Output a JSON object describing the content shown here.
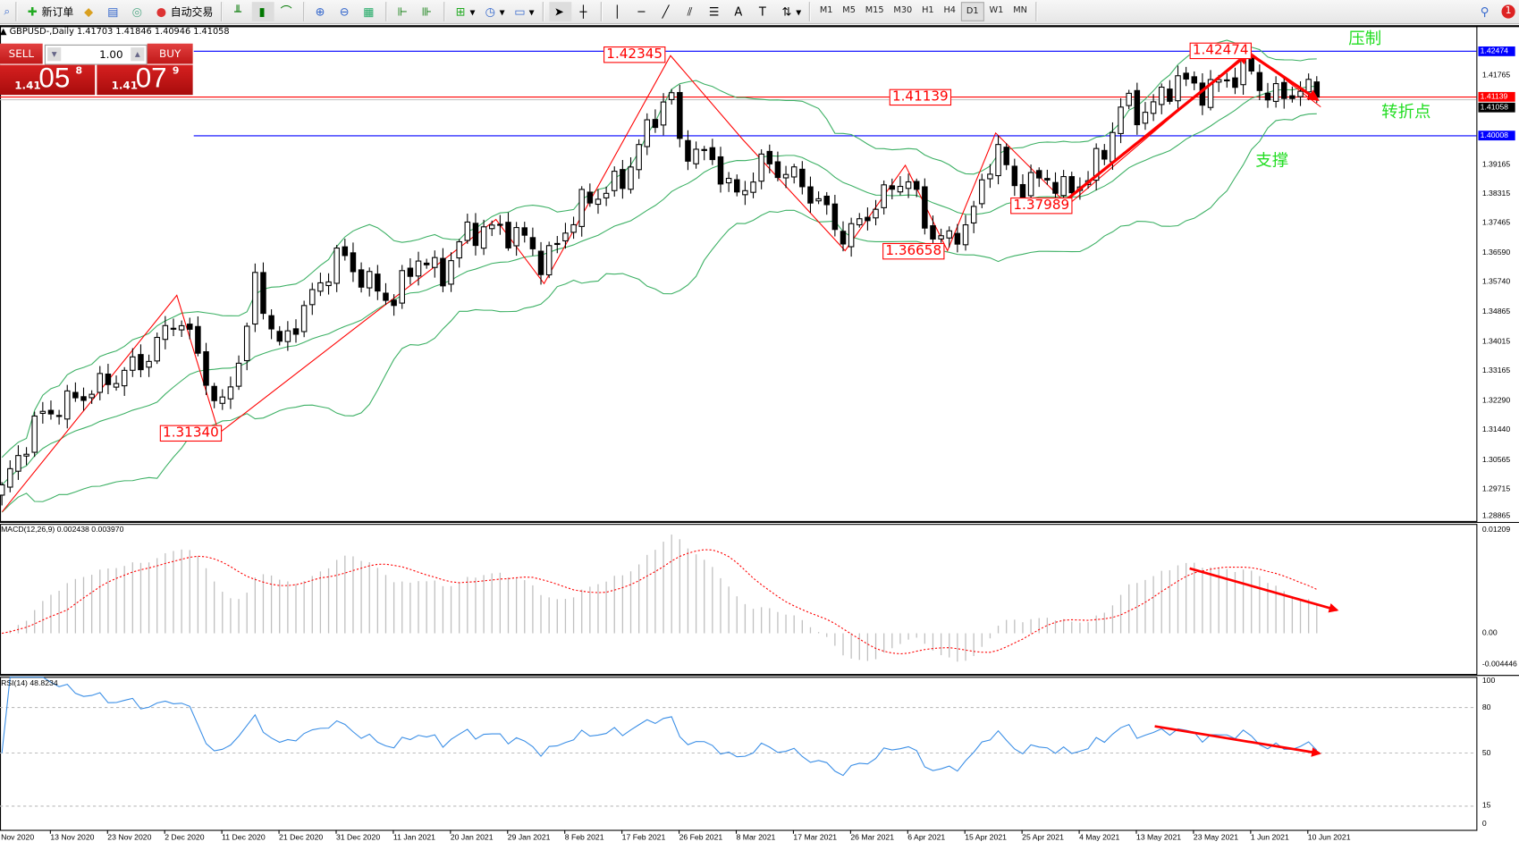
{
  "toolbar": {
    "items": [
      {
        "icon": "new-order-icon",
        "label": "新订单"
      },
      {
        "icon": "history-center-icon",
        "label": ""
      },
      {
        "icon": "navigator-icon",
        "label": ""
      },
      {
        "icon": "signals-icon",
        "label": ""
      },
      {
        "icon": "autotrading-icon",
        "label": "自动交易"
      }
    ],
    "chart_tools": [
      "bar-chart-icon",
      "candlestick-icon",
      "line-chart-icon",
      "zoom-in-icon",
      "zoom-out-icon",
      "tile-windows-icon",
      "autoscroll-icon",
      "chart-shift-icon",
      "indicators-icon",
      "periods-icon",
      "templates-icon",
      "cursor-icon",
      "crosshair-icon",
      "vertical-line-icon",
      "horizontal-line-icon",
      "trendline-icon",
      "equidistant-channel-icon",
      "fibonacci-icon",
      "text-icon",
      "text-label-icon",
      "arrows-icon"
    ],
    "timeframes": [
      "M1",
      "M5",
      "M15",
      "M30",
      "H1",
      "H4",
      "D1",
      "W1",
      "MN"
    ],
    "active_timeframe": "D1",
    "notification_count": "1"
  },
  "chart": {
    "header": "GBPUSD-,Daily  1.41703 1.41846 1.40946 1.41058",
    "trade_panel": {
      "sell_label": "SELL",
      "buy_label": "BUY",
      "lot": "1.00",
      "sell_prefix": "1.41",
      "sell_big": "05",
      "sell_sup": "8",
      "buy_prefix": "1.41",
      "buy_big": "07",
      "buy_sup": "9"
    },
    "annotations": {
      "resistance": "压制",
      "turning_point": "转折点",
      "support": "支撑"
    },
    "zigzag_labels": [
      "1.42345",
      "1.41139",
      "1.37989",
      "1.36658",
      "1.31340",
      "1.42474"
    ],
    "colors": {
      "bull_body": "#ffffff",
      "bear_body": "#000000",
      "bands": "#3cb064",
      "zigzag": "#ff0000",
      "hline_blue": "#0000ff",
      "hline_red": "#ff0000",
      "rsi": "#3a8ee6",
      "macd_hist": "#c0c0c0",
      "macd_signal": "#ff0000",
      "annotation": "#22dd22"
    }
  },
  "chart_data": {
    "type": "candlestick",
    "symbol": "GBPUSD-",
    "timeframe": "Daily",
    "price_ticks": [
      "1.41765",
      "1.39165",
      "1.38315",
      "1.37465",
      "1.36590",
      "1.35740",
      "1.34865",
      "1.34015",
      "1.33165",
      "1.32290",
      "1.31440",
      "1.30565",
      "1.29715",
      "1.28865"
    ],
    "price_range": [
      1.28865,
      1.4325
    ],
    "horizontal_lines": [
      {
        "price": 1.42474,
        "label": "1.42474",
        "color": "#0000ff"
      },
      {
        "price": 1.41139,
        "label": "1.41139",
        "color": "#ff0000"
      },
      {
        "price": 1.40008,
        "label": "1.40008",
        "color": "#0000ff"
      }
    ],
    "bid_label": "1.41058",
    "close_anchors": [
      [
        "2020-11-05",
        1.297
      ],
      [
        "2020-11-11",
        1.318
      ],
      [
        "2020-11-21",
        1.327
      ],
      [
        "2020-11-29",
        1.335
      ],
      [
        "2020-12-04",
        1.348
      ],
      [
        "2020-12-08",
        1.335
      ],
      [
        "2020-12-11",
        1.318
      ],
      [
        "2020-12-16",
        1.345
      ],
      [
        "2020-12-17",
        1.358
      ],
      [
        "2020-12-21",
        1.338
      ],
      [
        "2020-12-26",
        1.352
      ],
      [
        "2020-12-31",
        1.366
      ],
      [
        "2021-01-04",
        1.358
      ],
      [
        "2021-01-09",
        1.352
      ],
      [
        "2021-01-13",
        1.365
      ],
      [
        "2021-01-17",
        1.359
      ],
      [
        "2021-01-21",
        1.372
      ],
      [
        "2021-01-26",
        1.373
      ],
      [
        "2021-01-31",
        1.37
      ],
      [
        "2021-02-03",
        1.362
      ],
      [
        "2021-02-09",
        1.38
      ],
      [
        "2021-02-16",
        1.387
      ],
      [
        "2021-02-19",
        1.398
      ],
      [
        "2021-02-24",
        1.414
      ],
      [
        "2021-02-25",
        1.398
      ],
      [
        "2021-03-03",
        1.393
      ],
      [
        "2021-03-07",
        1.382
      ],
      [
        "2021-03-11",
        1.392
      ],
      [
        "2021-03-16",
        1.389
      ],
      [
        "2021-03-21",
        1.38
      ],
      [
        "2021-03-25",
        1.37
      ],
      [
        "2021-03-29",
        1.378
      ],
      [
        "2021-04-04",
        1.389
      ],
      [
        "2021-04-08",
        1.372
      ],
      [
        "2021-04-11",
        1.369
      ],
      [
        "2021-04-15",
        1.376
      ],
      [
        "2021-04-19",
        1.398
      ],
      [
        "2021-04-22",
        1.385
      ],
      [
        "2021-04-28",
        1.388
      ],
      [
        "2021-05-01",
        1.383
      ],
      [
        "2021-05-04",
        1.388
      ],
      [
        "2021-05-07",
        1.395
      ],
      [
        "2021-05-10",
        1.41
      ],
      [
        "2021-05-13",
        1.406
      ],
      [
        "2021-05-17",
        1.412
      ],
      [
        "2021-05-19",
        1.417
      ],
      [
        "2021-05-23",
        1.413
      ],
      [
        "2021-05-27",
        1.416
      ],
      [
        "2021-05-31",
        1.42
      ],
      [
        "2021-06-02",
        1.414
      ],
      [
        "2021-06-05",
        1.411
      ],
      [
        "2021-06-09",
        1.414
      ],
      [
        "2021-06-12",
        1.41058
      ]
    ],
    "zigzag": [
      [
        "2020-11-05",
        1.2905
      ],
      [
        "2020-12-04",
        1.3536
      ],
      [
        "2020-12-11",
        1.3134
      ],
      [
        "2021-01-26",
        1.3757
      ],
      [
        "2021-02-03",
        1.357
      ],
      [
        "2021-02-24",
        1.42345
      ],
      [
        "2021-03-08",
        1.399
      ],
      [
        "2021-03-25",
        1.3666
      ],
      [
        "2021-04-04",
        1.3915
      ],
      [
        "2021-04-11",
        1.36658
      ],
      [
        "2021-04-19",
        1.4009
      ],
      [
        "2021-05-01",
        1.37989
      ],
      [
        "2021-05-31",
        1.42474
      ],
      [
        "2021-06-12",
        1.4085
      ]
    ],
    "indicators": {
      "bollinger": {
        "period": 20,
        "deviation": 2
      },
      "macd": {
        "label": "MACD(12,26,9) 0.002438 0.003970",
        "fast": 12,
        "slow": 26,
        "signal": 9,
        "ticks": [
          "0.01209",
          "0.00",
          "-0.004446"
        ],
        "range": [
          -0.004446,
          0.01209
        ]
      },
      "rsi": {
        "label": "RSI(14) 48.8234",
        "period": 14,
        "ticks": [
          "100",
          "80",
          "50",
          "15",
          "0"
        ],
        "levels": [
          80,
          50,
          15
        ]
      }
    },
    "date_ticks": [
      "Nov 2020",
      "13 Nov 2020",
      "23 Nov 2020",
      "2 Dec 2020",
      "11 Dec 2020",
      "21 Dec 2020",
      "31 Dec 2020",
      "11 Jan 2021",
      "20 Jan 2021",
      "29 Jan 2021",
      "8 Feb 2021",
      "17 Feb 2021",
      "26 Feb 2021",
      "8 Mar 2021",
      "17 Mar 2021",
      "26 Mar 2021",
      "6 Apr 2021",
      "15 Apr 2021",
      "25 Apr 2021",
      "4 May 2021",
      "13 May 2021",
      "23 May 2021",
      "1 Jun 2021",
      "10 Jun 2021"
    ]
  }
}
